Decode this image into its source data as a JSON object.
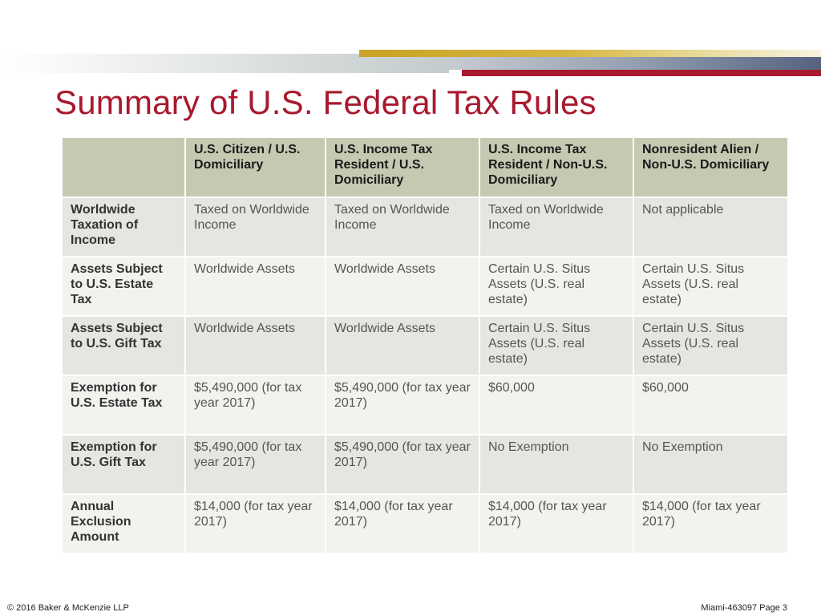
{
  "title": "Summary of U.S. Federal Tax Rules",
  "colors": {
    "title": "#a8192e",
    "accent_red": "#a8192e",
    "accent_gold": "#c9a227",
    "header_fill": "#c5c9b2",
    "row_fill_dark": "#e5e6e0",
    "row_fill_light": "#f2f2ef"
  },
  "table": {
    "corner": "",
    "columns": [
      "U.S. Citizen / U.S. Domiciliary",
      "U.S. Income Tax Resident / U.S. Domiciliary",
      "U.S. Income Tax Resident / Non-U.S. Domiciliary",
      "Nonresident Alien / Non-U.S. Domiciliary"
    ],
    "rows": [
      {
        "label": "Worldwide Taxation of Income",
        "cells": [
          "Taxed on Worldwide Income",
          "Taxed on Worldwide Income",
          "Taxed on Worldwide Income",
          "Not applicable"
        ]
      },
      {
        "label": "Assets Subject to U.S. Estate Tax",
        "cells": [
          "Worldwide Assets",
          "Worldwide Assets",
          "Certain U.S. Situs Assets (U.S. real estate)",
          "Certain U.S. Situs Assets (U.S. real estate)"
        ]
      },
      {
        "label": "Assets Subject to U.S. Gift Tax",
        "cells": [
          "Worldwide Assets",
          "Worldwide Assets",
          "Certain U.S. Situs Assets (U.S. real estate)",
          "Certain U.S. Situs Assets (U.S. real estate)"
        ]
      },
      {
        "label": "Exemption for U.S. Estate Tax",
        "cells": [
          "$5,490,000 (for tax year 2017)",
          "$5,490,000 (for tax year 2017)",
          "$60,000",
          "$60,000"
        ]
      },
      {
        "label": "Exemption for U.S. Gift Tax",
        "cells": [
          "$5,490,000 (for tax year 2017)",
          "$5,490,000 (for tax year 2017)",
          "No Exemption",
          "No Exemption"
        ]
      },
      {
        "label": "Annual Exclusion Amount",
        "cells": [
          "$14,000 (for tax year 2017)",
          "$14,000 (for tax year 2017)",
          "$14,000 (for tax year 2017)",
          "$14,000 (for tax year 2017)"
        ]
      }
    ]
  },
  "footer": {
    "copyright": "© 2016 Baker & McKenzie LLP",
    "page_ref": "Miami-463097 Page 3"
  }
}
